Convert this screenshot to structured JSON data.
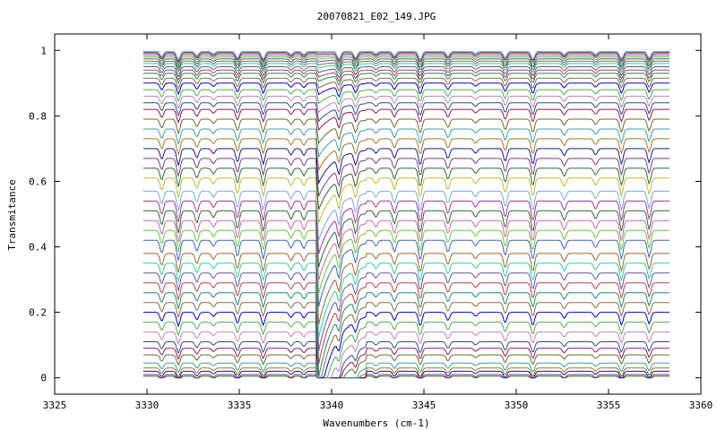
{
  "chart_data": {
    "type": "line",
    "title": "20070821_E02_149.JPG",
    "xlabel": "Wavenumbers (cm-1)",
    "ylabel": "Transmitance",
    "xlim": [
      3325,
      3360
    ],
    "ylim": [
      -0.05,
      1.05
    ],
    "x_ticks": [
      3325,
      3330,
      3335,
      3340,
      3345,
      3350,
      3355,
      3360
    ],
    "y_ticks": [
      0,
      0.2,
      0.4,
      0.6,
      0.8,
      1
    ],
    "x_range": [
      3329.8,
      3358.3
    ],
    "grid": false,
    "legend": "none",
    "line_positions": [
      3330.8,
      3331.7,
      3332.7,
      3333.6,
      3334.9,
      3336.3,
      3337.8,
      3338.5,
      3340.4,
      3341.3,
      3342.4,
      3343.4,
      3344.8,
      3346.3,
      3347.8,
      3349.4,
      3350.9,
      3352.6,
      3354.3,
      3355.7,
      3357.2
    ],
    "edge_position": 3339.3,
    "series_levels": [
      0.005,
      0.01,
      0.02,
      0.03,
      0.045,
      0.07,
      0.09,
      0.11,
      0.14,
      0.17,
      0.2,
      0.23,
      0.26,
      0.29,
      0.32,
      0.35,
      0.38,
      0.42,
      0.45,
      0.48,
      0.51,
      0.54,
      0.57,
      0.61,
      0.64,
      0.67,
      0.7,
      0.73,
      0.76,
      0.79,
      0.82,
      0.84,
      0.86,
      0.88,
      0.9,
      0.915,
      0.93,
      0.94,
      0.95,
      0.96,
      0.967,
      0.974,
      0.98,
      0.985,
      0.99,
      0.994,
      0.997
    ],
    "colors": [
      "#2d6a2d",
      "#7b3f7b",
      "#1a1a8c",
      "#a07820",
      "#3aa0a0",
      "#6b6b2b",
      "#8c1a5a",
      "#2b4f7b",
      "#c080c0",
      "#4caf50",
      "#0000cc",
      "#8c6b3f",
      "#1a8c6b",
      "#c04040",
      "#5a5aa0",
      "#33cc99",
      "#996633",
      "#3366cc",
      "#66cc33",
      "#cc66aa",
      "#336633",
      "#aa3399",
      "#77aadd",
      "#bbbb33"
    ]
  }
}
